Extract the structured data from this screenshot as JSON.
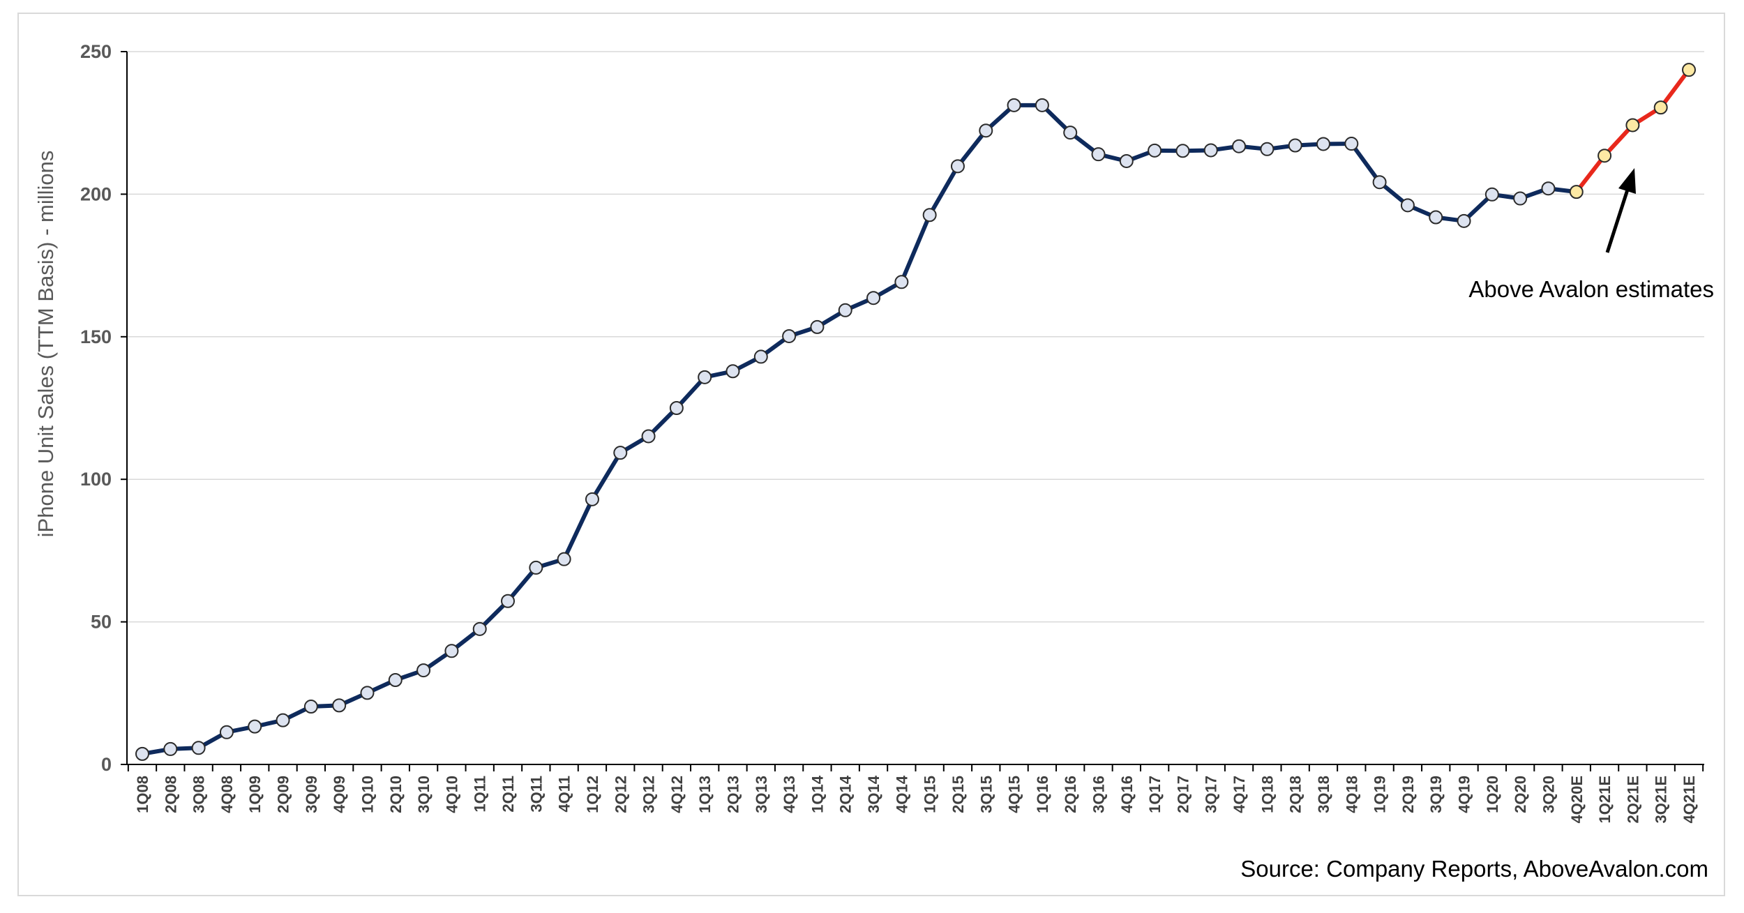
{
  "chart_data": {
    "type": "line",
    "title": "",
    "xlabel": "",
    "ylabel": "iPhone Unit Sales (TTM Basis) - millions",
    "ylim": [
      0,
      250
    ],
    "yticks": [
      "0",
      "50",
      "100",
      "150",
      "200",
      "250"
    ],
    "grid": true,
    "categories": [
      "1Q08",
      "2Q08",
      "3Q08",
      "4Q08",
      "1Q09",
      "2Q09",
      "3Q09",
      "4Q09",
      "1Q10",
      "2Q10",
      "3Q10",
      "4Q10",
      "1Q11",
      "2Q11",
      "3Q11",
      "4Q11",
      "1Q12",
      "2Q12",
      "3Q12",
      "4Q12",
      "1Q13",
      "2Q13",
      "3Q13",
      "4Q13",
      "1Q14",
      "2Q14",
      "3Q14",
      "4Q14",
      "1Q15",
      "2Q15",
      "3Q15",
      "4Q15",
      "1Q16",
      "2Q16",
      "3Q16",
      "4Q16",
      "1Q17",
      "2Q17",
      "3Q17",
      "4Q17",
      "1Q18",
      "2Q18",
      "3Q18",
      "4Q18",
      "1Q19",
      "2Q19",
      "3Q19",
      "4Q19",
      "1Q20",
      "2Q20",
      "3Q20",
      "4Q20E",
      "1Q21E",
      "2Q21E",
      "3Q21E",
      "4Q21E"
    ],
    "series": [
      {
        "values": [
          3.7,
          5.4,
          5.8,
          11.3,
          13.3,
          15.5,
          20.3,
          20.7,
          25.1,
          29.6,
          33.0,
          39.8,
          47.5,
          57.3,
          69.0,
          72.0,
          93.0,
          109.3,
          115.1,
          125.0,
          135.8,
          137.9,
          143.0,
          150.2,
          153.4,
          159.3,
          163.6,
          169.2,
          192.7,
          209.8,
          222.3,
          231.2,
          231.2,
          221.6,
          214.0,
          211.6,
          215.3,
          215.2,
          215.4,
          216.8,
          215.8,
          217.1,
          217.6,
          217.7,
          204.2,
          196.1,
          191.9,
          190.6,
          199.9,
          198.5,
          202.0,
          200.8,
          213.5,
          224.2,
          230.4,
          243.6
        ],
        "forecast_from_index": 51,
        "colors": {
          "actual_line": "#0e2a5c",
          "estimate_line": "#e8281c",
          "actual_marker_fill": "#dde3f0",
          "estimate_marker_fill": "#fde9a4",
          "marker_stroke": "#2b2b2b"
        }
      }
    ],
    "annotations": [
      {
        "text": "Above Avalon estimates",
        "arrow_to_category": "2Q21E"
      }
    ],
    "footer": "Source: Company Reports, AboveAvalon.com"
  }
}
